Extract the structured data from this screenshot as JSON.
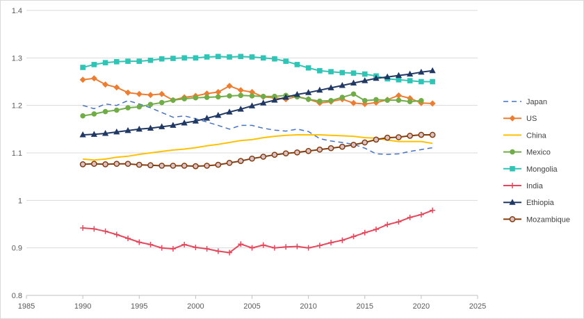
{
  "chart_data": {
    "type": "line",
    "xlim": [
      1985,
      2025
    ],
    "ylim": [
      0.8,
      1.4
    ],
    "x_ticks": [
      1985,
      1990,
      1995,
      2000,
      2005,
      2010,
      2015,
      2020,
      2025
    ],
    "y_ticks": [
      0.8,
      0.9,
      1,
      1.1,
      1.2,
      1.3,
      1.4
    ],
    "x_tick_labels": [
      "1985",
      "1990",
      "1995",
      "2000",
      "2005",
      "2010",
      "2015",
      "2020",
      "2025"
    ],
    "y_tick_labels": [
      "0.8",
      "0.9",
      "1",
      "1.1",
      "1.2",
      "1.3",
      "1.4"
    ],
    "grid": "horizontal",
    "legend_position": "right",
    "x": [
      1990,
      1991,
      1992,
      1993,
      1994,
      1995,
      1996,
      1997,
      1998,
      1999,
      2000,
      2001,
      2002,
      2003,
      2004,
      2005,
      2006,
      2007,
      2008,
      2009,
      2010,
      2011,
      2012,
      2013,
      2014,
      2015,
      2016,
      2017,
      2018,
      2019,
      2020,
      2021
    ],
    "series": [
      {
        "name": "Japan",
        "color": "#4472C4",
        "marker": "dash",
        "dashed": true,
        "values": [
          1.2,
          1.193,
          1.203,
          1.2,
          1.21,
          1.203,
          1.195,
          1.185,
          1.175,
          1.178,
          1.172,
          1.165,
          1.158,
          1.15,
          1.158,
          1.158,
          1.152,
          1.148,
          1.146,
          1.15,
          1.145,
          1.13,
          1.125,
          1.122,
          1.118,
          1.11,
          1.098,
          1.097,
          1.098,
          1.103,
          1.107,
          1.111
        ]
      },
      {
        "name": "US",
        "color": "#ED7D31",
        "marker": "diamond",
        "values": [
          1.254,
          1.257,
          1.244,
          1.238,
          1.227,
          1.224,
          1.222,
          1.224,
          1.211,
          1.217,
          1.22,
          1.225,
          1.228,
          1.241,
          1.232,
          1.228,
          1.218,
          1.216,
          1.213,
          1.219,
          1.213,
          1.205,
          1.208,
          1.213,
          1.205,
          1.203,
          1.206,
          1.212,
          1.221,
          1.215,
          1.205,
          1.204
        ]
      },
      {
        "name": "China",
        "color": "#FFC000",
        "marker": "none",
        "values": [
          1.087,
          1.085,
          1.087,
          1.091,
          1.093,
          1.097,
          1.1,
          1.103,
          1.106,
          1.108,
          1.111,
          1.115,
          1.118,
          1.122,
          1.126,
          1.128,
          1.132,
          1.135,
          1.137,
          1.138,
          1.138,
          1.138,
          1.137,
          1.136,
          1.135,
          1.132,
          1.131,
          1.127,
          1.124,
          1.124,
          1.124,
          1.12
        ]
      },
      {
        "name": "Mexico",
        "color": "#70AD47",
        "marker": "circle",
        "values": [
          1.178,
          1.182,
          1.187,
          1.19,
          1.195,
          1.197,
          1.202,
          1.206,
          1.211,
          1.214,
          1.216,
          1.217,
          1.218,
          1.22,
          1.221,
          1.22,
          1.219,
          1.219,
          1.221,
          1.218,
          1.213,
          1.209,
          1.21,
          1.217,
          1.224,
          1.21,
          1.212,
          1.211,
          1.211,
          1.208,
          1.21,
          null
        ]
      },
      {
        "name": "Mongolia",
        "color": "#2EC4B6",
        "marker": "square",
        "values": [
          1.28,
          1.286,
          1.29,
          1.292,
          1.293,
          1.293,
          1.295,
          1.298,
          1.299,
          1.3,
          1.3,
          1.302,
          1.303,
          1.302,
          1.303,
          1.302,
          1.3,
          1.298,
          1.293,
          1.286,
          1.279,
          1.273,
          1.271,
          1.269,
          1.268,
          1.266,
          1.262,
          1.256,
          1.254,
          1.252,
          1.25,
          1.25
        ]
      },
      {
        "name": "India",
        "color": "#E8465A",
        "marker": "plus",
        "values": [
          0.942,
          0.94,
          0.935,
          0.928,
          0.92,
          0.912,
          0.907,
          0.9,
          0.898,
          0.907,
          0.901,
          0.898,
          0.893,
          0.89,
          0.908,
          0.9,
          0.906,
          0.9,
          0.902,
          0.903,
          0.9,
          0.905,
          0.911,
          0.916,
          0.924,
          0.932,
          0.939,
          0.949,
          0.955,
          0.964,
          0.97,
          0.979
        ]
      },
      {
        "name": "Ethiopia",
        "color": "#203864",
        "marker": "triangle",
        "values": [
          1.138,
          1.139,
          1.141,
          1.144,
          1.147,
          1.15,
          1.152,
          1.155,
          1.158,
          1.163,
          1.167,
          1.173,
          1.179,
          1.186,
          1.192,
          1.199,
          1.205,
          1.211,
          1.217,
          1.223,
          1.227,
          1.232,
          1.237,
          1.242,
          1.247,
          1.252,
          1.257,
          1.26,
          1.263,
          1.266,
          1.27,
          1.273
        ]
      },
      {
        "name": "Mozambique",
        "color": "#843C0C",
        "marker": "ring",
        "values": [
          1.076,
          1.077,
          1.076,
          1.077,
          1.077,
          1.075,
          1.074,
          1.073,
          1.073,
          1.073,
          1.072,
          1.073,
          1.075,
          1.079,
          1.083,
          1.088,
          1.092,
          1.096,
          1.099,
          1.101,
          1.104,
          1.107,
          1.11,
          1.113,
          1.117,
          1.122,
          1.128,
          1.132,
          1.133,
          1.136,
          1.138,
          1.138
        ]
      }
    ]
  }
}
